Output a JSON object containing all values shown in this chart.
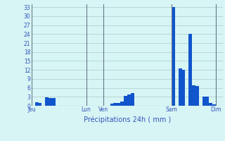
{
  "title": "Précipitations 24h ( mm )",
  "bar_color": "#1155cc",
  "background_color": "#d8f5f5",
  "grid_color": "#aacaca",
  "text_color": "#3355bb",
  "axis_color": "#aaaaaa",
  "ylim": [
    0,
    34
  ],
  "ytick_values": [
    0,
    3,
    6,
    9,
    12,
    15,
    18,
    21,
    24,
    27,
    30,
    33
  ],
  "n_bars": 56,
  "bar_values": [
    0,
    1.2,
    1.0,
    0,
    2.8,
    2.5,
    2.5,
    0,
    0,
    0,
    0,
    0,
    0,
    0,
    0,
    0,
    0,
    0,
    0,
    0,
    0,
    0,
    0,
    0.8,
    1.0,
    1.0,
    1.5,
    3.2,
    3.8,
    4.2,
    0,
    0,
    0,
    0,
    0,
    0,
    0,
    0,
    0,
    0,
    0,
    33.0,
    0,
    12.5,
    12.0,
    0,
    24.0,
    6.8,
    6.5,
    0,
    3.0,
    3.0,
    1.0,
    0.5,
    0,
    0
  ],
  "day_ticks_x": [
    0,
    16,
    21,
    41,
    54
  ],
  "day_labels": [
    "Jeu",
    "Lun",
    "Ven",
    "Sam",
    "Dim"
  ],
  "vline_positions": [
    0,
    16,
    21,
    41,
    54
  ]
}
